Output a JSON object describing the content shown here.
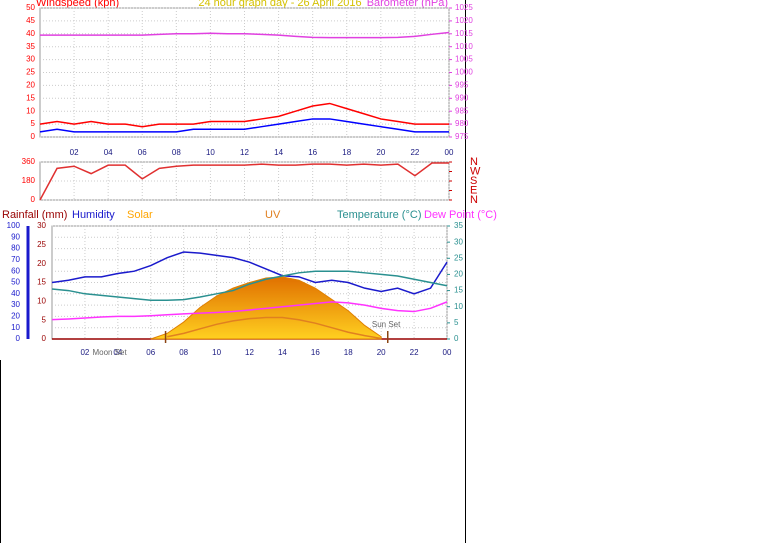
{
  "chart_data": [
    {
      "type": "line",
      "title": "24 hour graph day - 26 April 2016",
      "ylabel": "Windspeed (kph)",
      "y2label": "Barometer (hPa)",
      "x": [
        0,
        1,
        2,
        3,
        4,
        5,
        6,
        7,
        8,
        9,
        10,
        11,
        12,
        13,
        14,
        15,
        16,
        17,
        18,
        19,
        20,
        21,
        22,
        23,
        24
      ],
      "xlim": [
        0,
        24
      ],
      "xticks": [
        {
          "value": 2,
          "label": "02"
        },
        {
          "value": 4,
          "label": "04"
        },
        {
          "value": 6,
          "label": "06"
        },
        {
          "value": 8,
          "label": "08"
        },
        10,
        12,
        14,
        16,
        18,
        20,
        22,
        {
          "value": 24,
          "label": "00"
        }
      ],
      "ylim": [
        0,
        50
      ],
      "yticks": [
        0,
        5,
        10,
        15,
        20,
        25,
        30,
        35,
        40,
        45,
        50
      ],
      "y2lim": [
        975,
        1025
      ],
      "y2ticks": [
        975,
        980,
        985,
        990,
        995,
        1000,
        1005,
        1010,
        1015,
        1020,
        1025
      ],
      "grid": true,
      "series": [
        {
          "color": "#ff0000",
          "values": [
            5,
            6,
            5,
            6,
            5,
            5,
            4,
            5,
            5,
            5,
            6,
            6,
            6,
            7,
            8,
            10,
            12,
            13,
            11,
            9,
            7,
            6,
            5,
            5,
            5
          ]
        },
        {
          "color": "#0000ff",
          "values": [
            2,
            3,
            2,
            2,
            2,
            2,
            2,
            2,
            2,
            3,
            3,
            3,
            3,
            4,
            5,
            6,
            7,
            7,
            6,
            5,
            4,
            3,
            2,
            2,
            2
          ]
        },
        {
          "color": "#e040e0",
          "axis": "y2",
          "values": [
            1014.5,
            1014.5,
            1014.5,
            1014.5,
            1014.5,
            1014.5,
            1014.5,
            1014.8,
            1015,
            1015,
            1015.2,
            1015,
            1015,
            1014.8,
            1014.5,
            1014,
            1013.6,
            1013.5,
            1013.5,
            1013.5,
            1013.5,
            1013.6,
            1014,
            1014.8,
            1015.5
          ]
        }
      ]
    },
    {
      "type": "line",
      "x": [
        0,
        1,
        2,
        3,
        4,
        5,
        6,
        7,
        8,
        9,
        10,
        11,
        12,
        13,
        14,
        15,
        16,
        17,
        18,
        19,
        20,
        21,
        22,
        23,
        24
      ],
      "xlim": [
        0,
        24
      ],
      "ylim": [
        0,
        360
      ],
      "yticks": [
        0,
        180,
        360
      ],
      "y2lim": [
        0,
        360
      ],
      "y2ticks": [
        {
          "value": 360,
          "label": "N"
        },
        {
          "value": 270,
          "label": "W"
        },
        {
          "value": 180,
          "label": "S"
        },
        {
          "value": 90,
          "label": "E"
        },
        {
          "value": 0,
          "label": "N"
        }
      ],
      "grid": true,
      "series": [
        {
          "color": "#e03030",
          "values": [
            0,
            300,
            320,
            250,
            330,
            330,
            200,
            300,
            320,
            330,
            330,
            330,
            330,
            340,
            330,
            330,
            340,
            340,
            330,
            340,
            330,
            340,
            230,
            350,
            350
          ]
        }
      ]
    },
    {
      "type": "line",
      "x": [
        0,
        1,
        2,
        3,
        4,
        5,
        6,
        7,
        8,
        9,
        10,
        11,
        12,
        13,
        14,
        15,
        16,
        17,
        18,
        19,
        20,
        21,
        22,
        23,
        24
      ],
      "xlim": [
        0,
        24
      ],
      "xticks": [
        {
          "value": 2,
          "label": "02"
        },
        {
          "value": 4,
          "label": "04"
        },
        {
          "value": 6,
          "label": "06"
        },
        {
          "value": 8,
          "label": "08"
        },
        10,
        12,
        14,
        16,
        18,
        20,
        22,
        {
          "value": 24,
          "label": "00"
        }
      ],
      "ylim": [
        0,
        100
      ],
      "yticks": [
        0,
        10,
        20,
        30,
        40,
        50,
        60,
        70,
        80,
        90,
        100
      ],
      "rain_ylim": [
        0,
        30
      ],
      "rain_yticks": [
        0,
        5,
        10,
        15,
        20,
        25,
        30
      ],
      "y2lim": [
        0,
        35
      ],
      "y2ticks": [
        0,
        5,
        10,
        15,
        20,
        25,
        30,
        35
      ],
      "grid": true,
      "annotations": [
        {
          "text": "Moon Set",
          "x": 3.5
        },
        {
          "text": "Sun Set",
          "x": 20.3
        }
      ],
      "sun_markers": [
        6.9,
        20.4
      ],
      "series": [
        {
          "name": "Rainfall (mm)",
          "color": "#990000",
          "axis": "rain",
          "values": [
            0,
            0,
            0,
            0,
            0,
            0,
            0,
            0,
            0,
            0,
            0,
            0,
            0,
            0,
            0,
            0,
            0,
            0,
            0,
            0,
            0,
            0,
            0,
            0,
            0
          ]
        },
        {
          "name": "Humidity",
          "color": "#1a1acc",
          "values": [
            50,
            52,
            55,
            55,
            58,
            60,
            65,
            72,
            77,
            76,
            74,
            72,
            68,
            62,
            56,
            55,
            50,
            52,
            50,
            45,
            42,
            45,
            40,
            45,
            68
          ]
        },
        {
          "name": "Solar",
          "color": "#ffa500",
          "fill": true,
          "values": [
            null,
            null,
            null,
            null,
            null,
            null,
            0,
            5,
            15,
            28,
            38,
            45,
            50,
            54,
            55,
            52,
            45,
            35,
            25,
            12,
            2,
            null,
            null,
            null,
            null
          ]
        },
        {
          "name": "UV",
          "color": "#e08020",
          "values": [
            null,
            null,
            null,
            null,
            null,
            null,
            null,
            2,
            5,
            9,
            13,
            16,
            18,
            19,
            19,
            17,
            14,
            10,
            6,
            3,
            0.5,
            null,
            null,
            null,
            null
          ]
        },
        {
          "name": "Temperature (°C)",
          "color": "#2a9090",
          "axis": "y2",
          "values": [
            15.5,
            15,
            14,
            13.5,
            13,
            12.5,
            12,
            12,
            12.2,
            13,
            14,
            15,
            17,
            18.5,
            19.5,
            20.5,
            21,
            21,
            21,
            20.5,
            20,
            19.5,
            18.5,
            17.5,
            16.5
          ]
        },
        {
          "name": "Dew Point (°C)",
          "color": "#ff33ff",
          "axis": "y2",
          "values": [
            6,
            6.2,
            6.5,
            6.8,
            7,
            7,
            7.2,
            7.5,
            7.8,
            8,
            8.2,
            8.5,
            9,
            9.5,
            10,
            10.5,
            11,
            11.5,
            11.2,
            10.5,
            9.5,
            8.8,
            8.5,
            9.5,
            11.5
          ]
        }
      ]
    }
  ]
}
